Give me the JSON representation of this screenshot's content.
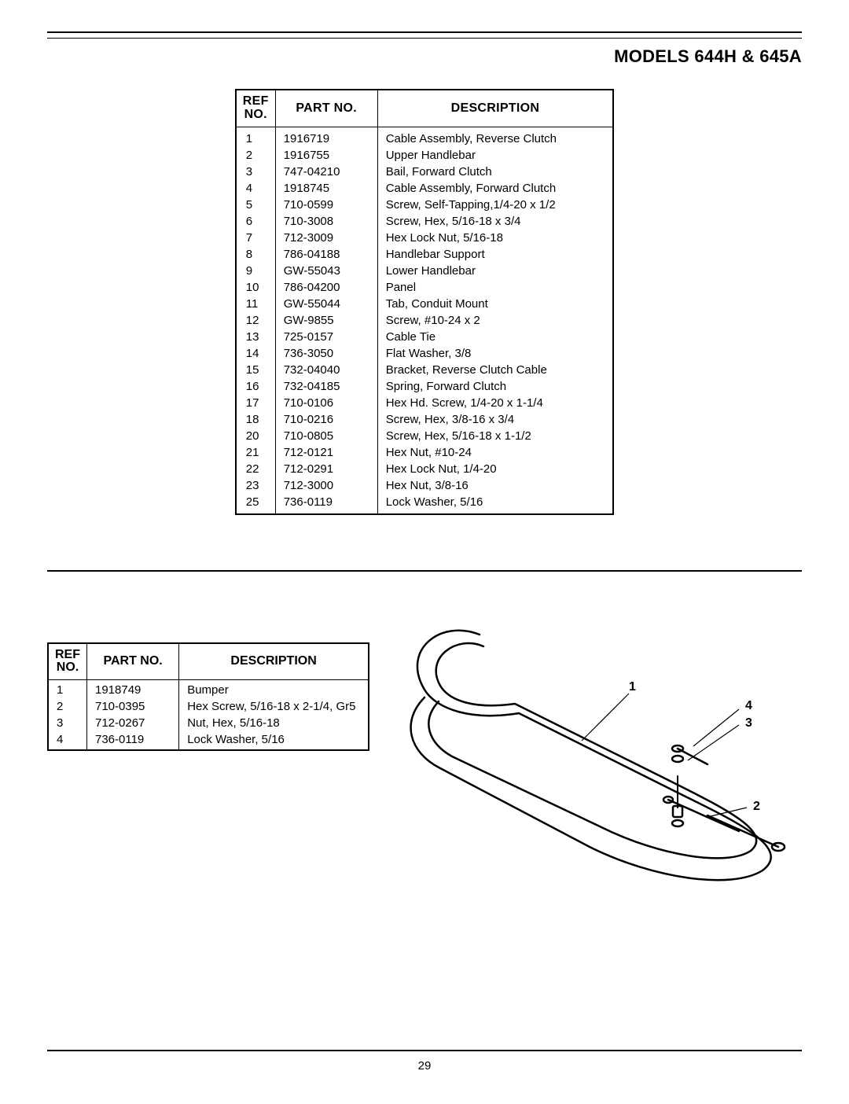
{
  "header": {
    "title": "MODELS 644H & 645A"
  },
  "main_table": {
    "columns": {
      "ref": "REF\nNO.",
      "part_no": "PART NO.",
      "description": "DESCRIPTION"
    },
    "rows": [
      {
        "ref": "1",
        "pn": "1916719",
        "desc": "Cable Assembly, Reverse Clutch"
      },
      {
        "ref": "2",
        "pn": "1916755",
        "desc": "Upper Handlebar"
      },
      {
        "ref": "3",
        "pn": "747-04210",
        "desc": "Bail, Forward Clutch"
      },
      {
        "ref": "4",
        "pn": "1918745",
        "desc": "Cable Assembly, Forward Clutch"
      },
      {
        "ref": "5",
        "pn": "710-0599",
        "desc": "Screw, Self-Tapping,1/4-20 x 1/2"
      },
      {
        "ref": "6",
        "pn": "710-3008",
        "desc": "Screw, Hex, 5/16-18 x 3/4"
      },
      {
        "ref": "7",
        "pn": "712-3009",
        "desc": "Hex Lock Nut, 5/16-18"
      },
      {
        "ref": "8",
        "pn": "786-04188",
        "desc": "Handlebar Support"
      },
      {
        "ref": "9",
        "pn": "GW-55043",
        "desc": "Lower Handlebar"
      },
      {
        "ref": "10",
        "pn": "786-04200",
        "desc": "Panel"
      },
      {
        "ref": "11",
        "pn": "GW-55044",
        "desc": "Tab, Conduit Mount"
      },
      {
        "ref": "12",
        "pn": "GW-9855",
        "desc": "Screw, #10-24 x 2"
      },
      {
        "ref": "13",
        "pn": "725-0157",
        "desc": "Cable Tie"
      },
      {
        "ref": "14",
        "pn": "736-3050",
        "desc": "Flat Washer, 3/8"
      },
      {
        "ref": "15",
        "pn": "732-04040",
        "desc": "Bracket, Reverse Clutch Cable"
      },
      {
        "ref": "16",
        "pn": "732-04185",
        "desc": "Spring, Forward Clutch"
      },
      {
        "ref": "17",
        "pn": "710-0106",
        "desc": "Hex Hd. Screw, 1/4-20 x 1-1/4"
      },
      {
        "ref": "18",
        "pn": "710-0216",
        "desc": "Screw, Hex, 3/8-16 x 3/4"
      },
      {
        "ref": "20",
        "pn": "710-0805",
        "desc": "Screw, Hex, 5/16-18 x 1-1/2"
      },
      {
        "ref": "21",
        "pn": "712-0121",
        "desc": "Hex Nut, #10-24"
      },
      {
        "ref": "22",
        "pn": "712-0291",
        "desc": "Hex Lock Nut, 1/4-20"
      },
      {
        "ref": "23",
        "pn": "712-3000",
        "desc": "Hex Nut, 3/8-16"
      },
      {
        "ref": "25",
        "pn": "736-0119",
        "desc": "Lock Washer, 5/16"
      }
    ]
  },
  "small_table": {
    "columns": {
      "ref": "REF\nNO.",
      "part_no": "PART NO.",
      "description": "DESCRIPTION"
    },
    "rows": [
      {
        "ref": "1",
        "pn": "1918749",
        "desc": "Bumper"
      },
      {
        "ref": "2",
        "pn": "710-0395",
        "desc": "Hex Screw, 5/16-18 x 2-1/4, Gr5"
      },
      {
        "ref": "3",
        "pn": "712-0267",
        "desc": "Nut, Hex, 5/16-18"
      },
      {
        "ref": "4",
        "pn": "736-0119",
        "desc": "Lock Washer, 5/16"
      }
    ]
  },
  "diagram": {
    "callouts": {
      "c1": "1",
      "c2": "2",
      "c3": "3",
      "c4": "4"
    }
  },
  "footer": {
    "page_number": "29"
  }
}
